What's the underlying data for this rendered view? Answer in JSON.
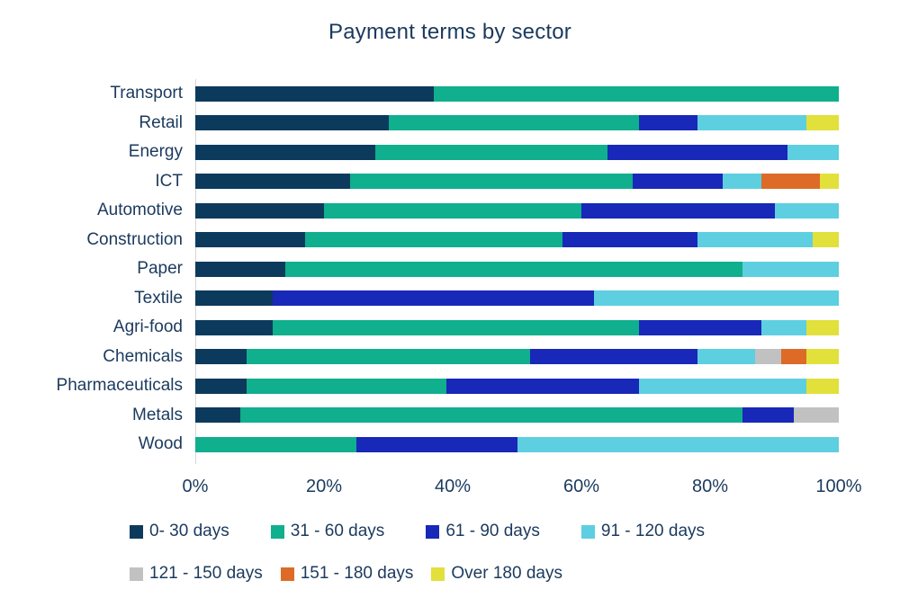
{
  "title": "Payment terms by sector",
  "colors": {
    "text": "#1b3a5e",
    "axis_line": "#d6d6d6",
    "background": "#ffffff"
  },
  "chart_data": {
    "type": "bar",
    "orientation": "horizontal",
    "stacked": true,
    "title": "Payment terms by sector",
    "xlabel": "",
    "ylabel": "",
    "unit": "percent",
    "xlim": [
      0,
      100
    ],
    "x_ticks": [
      "0%",
      "20%",
      "40%",
      "60%",
      "80%",
      "100%"
    ],
    "grid": false,
    "legend_position": "bottom",
    "categories": [
      "Transport",
      "Retail",
      "Energy",
      "ICT",
      "Automotive",
      "Construction",
      "Paper",
      "Textile",
      "Agri-food",
      "Chemicals",
      "Pharmaceuticals",
      "Metals",
      "Wood"
    ],
    "series": [
      {
        "name": "0- 30 days",
        "color": "#0c3a5d",
        "values": [
          37,
          30,
          28,
          24,
          20,
          17,
          14,
          12,
          12,
          8,
          8,
          7,
          0
        ]
      },
      {
        "name": "31 - 60 days",
        "color": "#10af8d",
        "values": [
          63,
          39,
          36,
          44,
          40,
          40,
          71,
          0,
          57,
          44,
          31,
          78,
          25
        ]
      },
      {
        "name": "61 - 90 days",
        "color": "#1828b8",
        "values": [
          0,
          9,
          28,
          14,
          30,
          21,
          0,
          50,
          19,
          26,
          30,
          8,
          25
        ]
      },
      {
        "name": "91 - 120 days",
        "color": "#5dcfe0",
        "values": [
          0,
          17,
          8,
          6,
          10,
          18,
          15,
          38,
          7,
          9,
          26,
          0,
          50
        ]
      },
      {
        "name": "121 - 150 days",
        "color": "#c1c1c1",
        "values": [
          0,
          0,
          0,
          0,
          0,
          0,
          0,
          0,
          0,
          4,
          0,
          7,
          0
        ]
      },
      {
        "name": "151 - 180 days",
        "color": "#dd6b27",
        "values": [
          0,
          0,
          0,
          9,
          0,
          0,
          0,
          0,
          0,
          4,
          0,
          0,
          0
        ]
      },
      {
        "name": "Over 180 days",
        "color": "#e2e03b",
        "values": [
          0,
          5,
          0,
          3,
          0,
          4,
          0,
          0,
          5,
          5,
          5,
          0,
          0
        ]
      }
    ],
    "legend_rows": [
      [
        0,
        1,
        2,
        3
      ],
      [
        4,
        5,
        6
      ]
    ]
  }
}
